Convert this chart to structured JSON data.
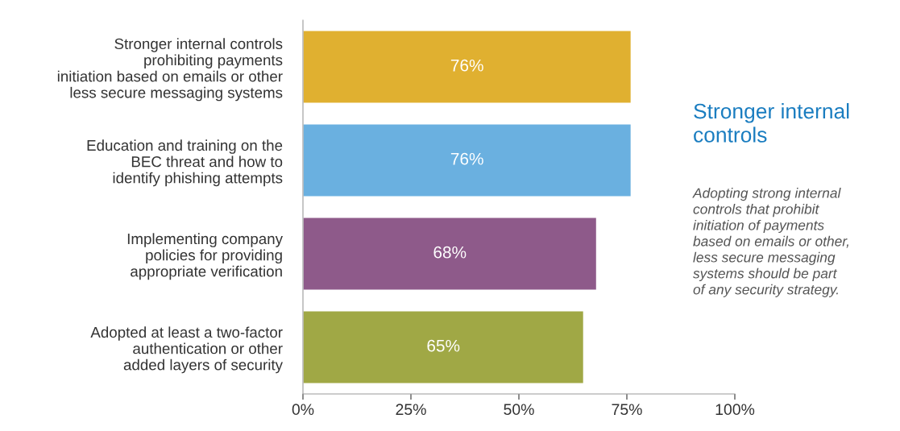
{
  "chart_data": {
    "type": "bar",
    "orientation": "horizontal",
    "categories": [
      "Stronger internal controls\nprohibiting payments\ninitiation based on emails or other\nless secure messaging systems",
      "Education and training on the\nBEC threat and how to\nidentify phishing attempts",
      "Implementing company\npolicies for providing\nappropriate verification",
      "Adopted at least a two-factor\nauthentication or other\nadded layers of security"
    ],
    "values": [
      76,
      76,
      68,
      65
    ],
    "colors": [
      "#e0b030",
      "#6ab0e0",
      "#8e5a8a",
      "#a0a845"
    ],
    "value_labels": [
      "76%",
      "76%",
      "68%",
      "65%"
    ],
    "xlim": [
      0,
      100
    ],
    "xticks": [
      {
        "value": 0,
        "label": "0%"
      },
      {
        "value": 25,
        "label": "25%"
      },
      {
        "value": 50,
        "label": "50%"
      },
      {
        "value": 75,
        "label": "75%"
      },
      {
        "value": 100,
        "label": "100%"
      }
    ],
    "grid": false,
    "legend": false,
    "annotations": [
      "Stronger internal\ncontrols",
      "Adopting strong internal\ncontrols that prohibit\ninitiation of payments\nbased on emails or other,\nless secure messaging\nsystems should be part\nof any security strategy."
    ]
  }
}
